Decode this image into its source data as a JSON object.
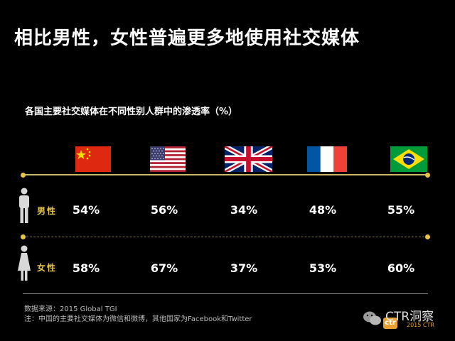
{
  "page": {
    "title": "相比男性，女性普遍更多地使用社交媒体",
    "source_line1": "数据来源：2015 Global TGI",
    "source_line2": "注：中国的主要社交媒体为微信和微博，其他国家为Facebook和Twitter",
    "watermark": "CTR洞察",
    "watermark_small": "2015 CTR"
  },
  "colors": {
    "background": "#000000",
    "accent": "#e8c547",
    "text": "#ffffff"
  },
  "chart_data": {
    "type": "table",
    "title": "各国主要社交媒体在不同性别人群中的渗透率（%）",
    "columns": [
      {
        "flag": "china-flag"
      },
      {
        "flag": "usa-flag"
      },
      {
        "flag": "uk-flag"
      },
      {
        "flag": "france-flag"
      },
      {
        "flag": "brazil-flag"
      }
    ],
    "series": [
      {
        "name": "男性",
        "icon": "male-person-icon",
        "values": [
          54,
          56,
          34,
          48,
          55
        ],
        "labels": [
          "54%",
          "56%",
          "34%",
          "48%",
          "55%"
        ]
      },
      {
        "name": "女性",
        "icon": "female-person-icon",
        "values": [
          58,
          67,
          37,
          53,
          60
        ],
        "labels": [
          "58%",
          "67%",
          "37%",
          "53%",
          "60%"
        ]
      }
    ],
    "unit": "%"
  }
}
